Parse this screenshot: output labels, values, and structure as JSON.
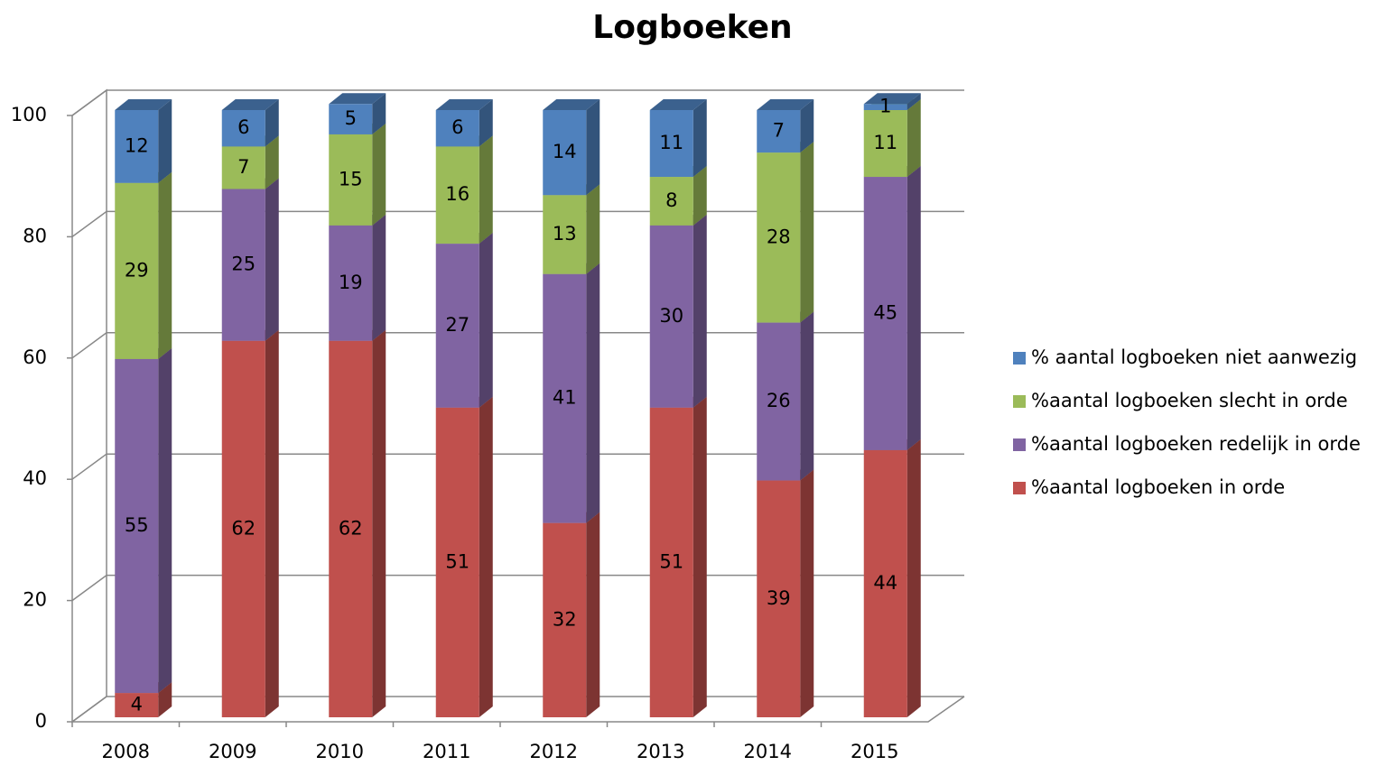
{
  "chart_data": {
    "type": "bar3d-stacked",
    "title": "Logboeken",
    "categories": [
      "2008",
      "2009",
      "2010",
      "2011",
      "2012",
      "2013",
      "2014",
      "2015"
    ],
    "series": [
      {
        "name": "%aantal logboeken in orde",
        "color": "#c0504d",
        "values": [
          4,
          62,
          62,
          51,
          32,
          51,
          39,
          44
        ]
      },
      {
        "name": "%aantal logboeken redelijk in orde",
        "color": "#8064a2",
        "values": [
          55,
          25,
          19,
          27,
          41,
          30,
          26,
          45
        ]
      },
      {
        "name": "%aantal logboeken slecht in orde",
        "color": "#9bbb59",
        "values": [
          29,
          7,
          15,
          16,
          13,
          8,
          28,
          11
        ]
      },
      {
        "name": "% aantal logboeken niet aanwezig",
        "color": "#4f81bd",
        "values": [
          12,
          6,
          5,
          6,
          14,
          11,
          7,
          1
        ]
      }
    ],
    "ylim": [
      0,
      100
    ],
    "yticks": [
      0,
      20,
      40,
      60,
      80,
      100
    ],
    "grid": true,
    "legend": "right"
  }
}
